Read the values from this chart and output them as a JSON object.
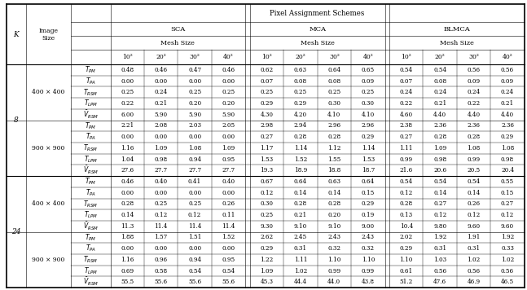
{
  "title": "Pixel Assignment Schemes",
  "col_groups": [
    "SCA",
    "MCA",
    "BLMCA"
  ],
  "mesh_label": "Mesh Size",
  "mesh_sizes": [
    "10²",
    "20²",
    "30²",
    "40²"
  ],
  "row_labels": [
    "T_PM",
    "T_PA",
    "T_RSM",
    "T_LPM",
    "V_RSM"
  ],
  "K_values": [
    "8",
    "24"
  ],
  "image_sizes": [
    "400 × 400",
    "900 × 900"
  ],
  "data": {
    "8": {
      "400x400": {
        "SCA": {
          "T_PM": [
            0.48,
            0.46,
            0.47,
            0.46
          ],
          "T_PA": [
            0.0,
            0.0,
            0.0,
            0.0
          ],
          "T_RSM": [
            0.25,
            0.24,
            0.25,
            0.25
          ],
          "T_LPM": [
            0.22,
            0.21,
            0.2,
            0.2
          ],
          "V_RSM": [
            6.0,
            5.9,
            5.9,
            5.9
          ]
        },
        "MCA": {
          "T_PM": [
            0.62,
            0.63,
            0.64,
            0.65
          ],
          "T_PA": [
            0.07,
            0.08,
            0.08,
            0.09
          ],
          "T_RSM": [
            0.25,
            0.25,
            0.25,
            0.25
          ],
          "T_LPM": [
            0.29,
            0.29,
            0.3,
            0.3
          ],
          "V_RSM": [
            4.3,
            4.2,
            4.1,
            4.1
          ]
        },
        "BLMCA": {
          "T_PM": [
            0.54,
            0.54,
            0.56,
            0.56
          ],
          "T_PA": [
            0.07,
            0.08,
            0.09,
            0.09
          ],
          "T_RSM": [
            0.24,
            0.24,
            0.24,
            0.24
          ],
          "T_LPM": [
            0.22,
            0.21,
            0.22,
            0.21
          ],
          "V_RSM": [
            4.6,
            4.4,
            4.4,
            4.4
          ]
        }
      },
      "900x900": {
        "SCA": {
          "T_PM": [
            2.21,
            2.08,
            2.03,
            2.05
          ],
          "T_PA": [
            0.0,
            0.0,
            0.0,
            0.0
          ],
          "T_RSM": [
            1.16,
            1.09,
            1.08,
            1.09
          ],
          "T_LPM": [
            1.04,
            0.98,
            0.94,
            0.95
          ],
          "V_RSM": [
            27.6,
            27.7,
            27.7,
            27.7
          ]
        },
        "MCA": {
          "T_PM": [
            2.98,
            2.94,
            2.96,
            2.96
          ],
          "T_PA": [
            0.27,
            0.28,
            0.28,
            0.29
          ],
          "T_RSM": [
            1.17,
            1.14,
            1.12,
            1.14
          ],
          "T_LPM": [
            1.53,
            1.52,
            1.55,
            1.53
          ],
          "V_RSM": [
            19.3,
            18.9,
            18.8,
            18.7
          ]
        },
        "BLMCA": {
          "T_PM": [
            2.38,
            2.36,
            2.36,
            2.36
          ],
          "T_PA": [
            0.27,
            0.28,
            0.28,
            0.29
          ],
          "T_RSM": [
            1.11,
            1.09,
            1.08,
            1.08
          ],
          "T_LPM": [
            0.99,
            0.98,
            0.99,
            0.98
          ],
          "V_RSM": [
            21.6,
            20.6,
            20.5,
            20.4
          ]
        }
      }
    },
    "24": {
      "400x400": {
        "SCA": {
          "T_PM": [
            0.46,
            0.4,
            0.41,
            0.4
          ],
          "T_PA": [
            0.0,
            0.0,
            0.0,
            0.0
          ],
          "T_RSM": [
            0.28,
            0.25,
            0.25,
            0.26
          ],
          "T_LPM": [
            0.14,
            0.12,
            0.12,
            0.11
          ],
          "V_RSM": [
            11.3,
            11.4,
            11.4,
            11.4
          ]
        },
        "MCA": {
          "T_PM": [
            0.67,
            0.64,
            0.63,
            0.64
          ],
          "T_PA": [
            0.12,
            0.14,
            0.14,
            0.15
          ],
          "T_RSM": [
            0.3,
            0.28,
            0.28,
            0.29
          ],
          "T_LPM": [
            0.25,
            0.21,
            0.2,
            0.19
          ],
          "V_RSM": [
            9.3,
            9.1,
            9.1,
            9.0
          ]
        },
        "BLMCA": {
          "T_PM": [
            0.54,
            0.54,
            0.54,
            0.55
          ],
          "T_PA": [
            0.12,
            0.14,
            0.14,
            0.15
          ],
          "T_RSM": [
            0.28,
            0.27,
            0.26,
            0.27
          ],
          "T_LPM": [
            0.13,
            0.12,
            0.12,
            0.12
          ],
          "V_RSM": [
            10.4,
            9.8,
            9.6,
            9.6
          ]
        }
      },
      "900x900": {
        "SCA": {
          "T_PM": [
            1.88,
            1.57,
            1.51,
            1.52
          ],
          "T_PA": [
            0.0,
            0.0,
            0.0,
            0.0
          ],
          "T_RSM": [
            1.16,
            0.96,
            0.94,
            0.95
          ],
          "T_LPM": [
            0.69,
            0.58,
            0.54,
            0.54
          ],
          "V_RSM": [
            55.5,
            55.6,
            55.6,
            55.6
          ]
        },
        "MCA": {
          "T_PM": [
            2.62,
            2.45,
            2.43,
            2.43
          ],
          "T_PA": [
            0.29,
            0.31,
            0.32,
            0.32
          ],
          "T_RSM": [
            1.22,
            1.11,
            1.1,
            1.1
          ],
          "T_LPM": [
            1.09,
            1.02,
            0.99,
            0.99
          ],
          "V_RSM": [
            45.3,
            44.4,
            44.0,
            43.8
          ]
        },
        "BLMCA": {
          "T_PM": [
            2.02,
            1.92,
            1.91,
            1.92
          ],
          "T_PA": [
            0.29,
            0.31,
            0.31,
            0.33
          ],
          "T_RSM": [
            1.1,
            1.03,
            1.02,
            1.02
          ],
          "T_LPM": [
            0.61,
            0.56,
            0.56,
            0.56
          ],
          "V_RSM": [
            51.2,
            47.6,
            46.9,
            46.5
          ]
        }
      }
    }
  }
}
